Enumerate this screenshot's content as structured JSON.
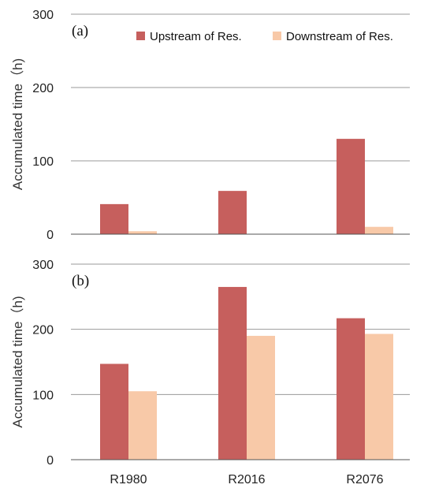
{
  "chart_data": [
    {
      "type": "bar",
      "panel_label": "(a)",
      "categories": [
        "R1980",
        "R2016",
        "R2076"
      ],
      "series": [
        {
          "name": "Upstream of Res.",
          "values": [
            41,
            59,
            130
          ]
        },
        {
          "name": "Downstream of Res.",
          "values": [
            4,
            0,
            10
          ]
        }
      ],
      "ylabel": "Accumulated time（h)",
      "ylim": [
        0,
        300
      ],
      "yticks": [
        0,
        100,
        200,
        300
      ],
      "grid": true,
      "legend": "top-right",
      "show_x_tick_labels": false
    },
    {
      "type": "bar",
      "panel_label": "(b)",
      "categories": [
        "R1980",
        "R2016",
        "R2076"
      ],
      "series": [
        {
          "name": "Upstream of Res.",
          "values": [
            147,
            265,
            217
          ]
        },
        {
          "name": "Downstream of Res.",
          "values": [
            105,
            190,
            193
          ]
        }
      ],
      "ylabel": "Accumulated time（h)",
      "ylim": [
        0,
        300
      ],
      "yticks": [
        0,
        100,
        200,
        300
      ],
      "grid": true,
      "legend": "none",
      "show_x_tick_labels": true
    }
  ],
  "colors": {
    "upstream": "#c65f5d",
    "downstream": "#f8c9a8",
    "grid": "#9a9a9a",
    "axis": "#555555"
  }
}
